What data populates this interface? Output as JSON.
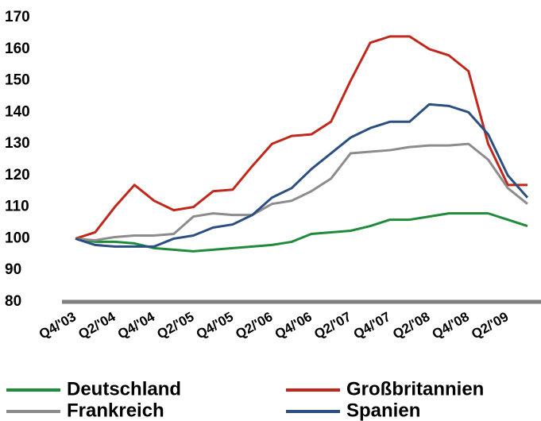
{
  "chart_data": {
    "type": "line",
    "categories": [
      "Q4/'03",
      null,
      "Q2/'04",
      null,
      "Q4/'04",
      null,
      "Q2/'05",
      null,
      "Q4/'05",
      null,
      "Q2/'06",
      null,
      "Q4/'06",
      null,
      "Q2/'07",
      null,
      "Q4/'07",
      null,
      "Q2/'08",
      null,
      "Q4/'08",
      null,
      "Q2/'09",
      null
    ],
    "series": [
      {
        "name": "Deutschland",
        "color": "#1e8c3a",
        "values": [
          100,
          99,
          99,
          98.5,
          97,
          96.5,
          96,
          96.5,
          97,
          97.5,
          98,
          99,
          101.5,
          102,
          102.5,
          104,
          106,
          106,
          107,
          108,
          108,
          108,
          106,
          104
        ]
      },
      {
        "name": "Großbritannien",
        "color": "#c0281c",
        "values": [
          100,
          102,
          110,
          117,
          112,
          109,
          110,
          115,
          115.5,
          123,
          130,
          132.5,
          133,
          137,
          150,
          162,
          164,
          164,
          160,
          158,
          153,
          130,
          117,
          117
        ]
      },
      {
        "name": "Frankreich",
        "color": "#8c8c8c",
        "values": [
          100,
          99.5,
          100.5,
          101,
          101,
          101.5,
          107,
          108,
          107.5,
          107.5,
          111,
          112,
          115,
          119,
          127,
          127.5,
          128,
          129,
          129.5,
          129.5,
          130,
          125,
          116,
          111
        ]
      },
      {
        "name": "Spanien",
        "color": "#2b4f80",
        "values": [
          100,
          98,
          97.5,
          97.5,
          97.5,
          100,
          101,
          103.5,
          104.5,
          107.5,
          113,
          116,
          122,
          127,
          132,
          135,
          137,
          137,
          142.5,
          142,
          140,
          133,
          120,
          113
        ]
      }
    ],
    "ylim": [
      80,
      170
    ],
    "yticks": [
      80,
      90,
      100,
      110,
      120,
      130,
      140,
      150,
      160,
      170
    ]
  }
}
